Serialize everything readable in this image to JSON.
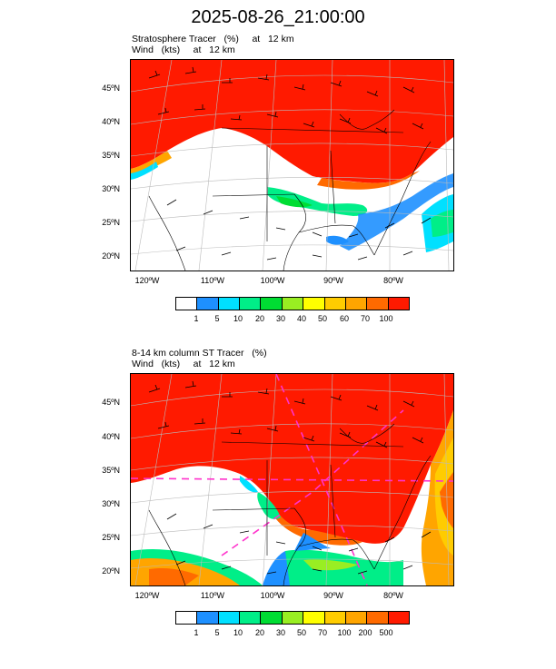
{
  "title": "2025-08-26_21:00:00",
  "panels": [
    {
      "title_line1": "Stratosphere Tracer   (%)     at   12 km",
      "title_line2": "Wind   (kts)     at   12 km",
      "lat_labels": [
        "45ºN",
        "40ºN",
        "35ºN",
        "30ºN",
        "25ºN",
        "20ºN"
      ],
      "lon_labels": [
        "120ºW",
        "110ºW",
        "100ºW",
        "90ºW",
        "80ºW"
      ],
      "colorbar_labels": [
        "1",
        "5",
        "10",
        "20",
        "30",
        "40",
        "50",
        "60",
        "70",
        "100"
      ]
    },
    {
      "title_line1": "8-14 km column ST Tracer   (%)",
      "title_line2": "Wind   (kts)     at   12 km",
      "lat_labels": [
        "45ºN",
        "40ºN",
        "35ºN",
        "30ºN",
        "25ºN",
        "20ºN"
      ],
      "lon_labels": [
        "120ºW",
        "110ºW",
        "100ºW",
        "90ºW",
        "80ºW"
      ],
      "colorbar_labels": [
        "1",
        "5",
        "10",
        "20",
        "30",
        "50",
        "70",
        "100",
        "200",
        "500"
      ]
    }
  ],
  "colorbar_colors": [
    "#ffffff",
    "#1e90ff",
    "#00e0ff",
    "#00ee88",
    "#00dd33",
    "#99ee22",
    "#ffff00",
    "#ffcc00",
    "#ffa500",
    "#ff6a00",
    "#ff1a00"
  ]
}
